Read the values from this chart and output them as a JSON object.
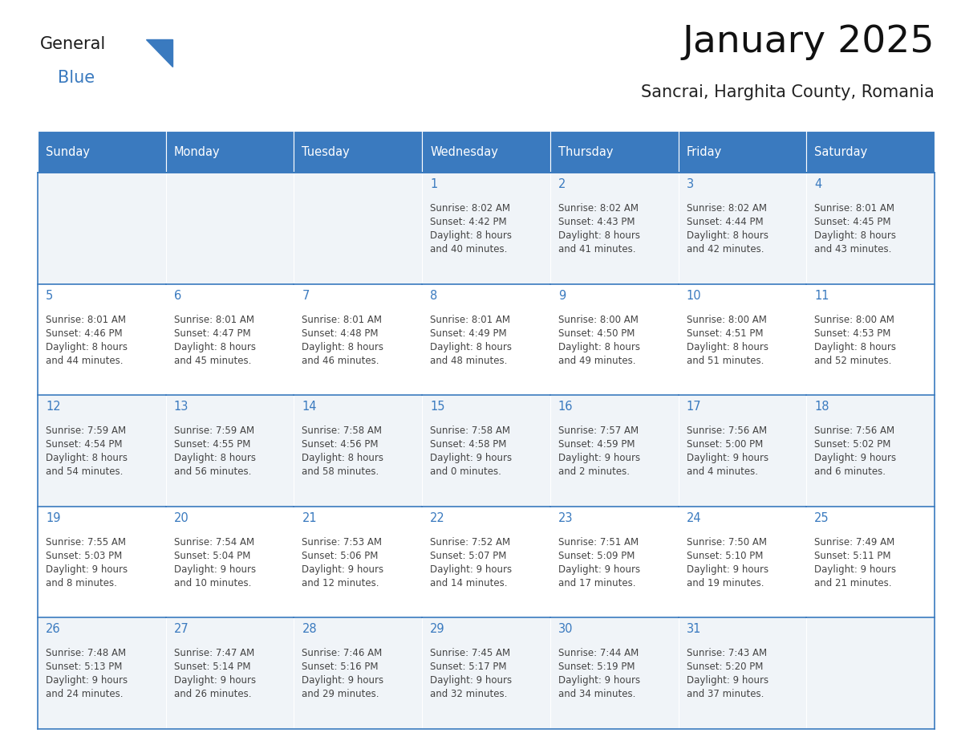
{
  "title": "January 2025",
  "subtitle": "Sancrai, Harghita County, Romania",
  "header_bg": "#3a7abf",
  "header_text_color": "#ffffff",
  "cell_bg_odd": "#f0f4f8",
  "cell_bg_even": "#ffffff",
  "day_number_color": "#3a7abf",
  "text_color": "#444444",
  "line_color": "#3a7abf",
  "days_of_week": [
    "Sunday",
    "Monday",
    "Tuesday",
    "Wednesday",
    "Thursday",
    "Friday",
    "Saturday"
  ],
  "weeks": [
    [
      {
        "day": null,
        "info": ""
      },
      {
        "day": null,
        "info": ""
      },
      {
        "day": null,
        "info": ""
      },
      {
        "day": 1,
        "info": "Sunrise: 8:02 AM\nSunset: 4:42 PM\nDaylight: 8 hours\nand 40 minutes."
      },
      {
        "day": 2,
        "info": "Sunrise: 8:02 AM\nSunset: 4:43 PM\nDaylight: 8 hours\nand 41 minutes."
      },
      {
        "day": 3,
        "info": "Sunrise: 8:02 AM\nSunset: 4:44 PM\nDaylight: 8 hours\nand 42 minutes."
      },
      {
        "day": 4,
        "info": "Sunrise: 8:01 AM\nSunset: 4:45 PM\nDaylight: 8 hours\nand 43 minutes."
      }
    ],
    [
      {
        "day": 5,
        "info": "Sunrise: 8:01 AM\nSunset: 4:46 PM\nDaylight: 8 hours\nand 44 minutes."
      },
      {
        "day": 6,
        "info": "Sunrise: 8:01 AM\nSunset: 4:47 PM\nDaylight: 8 hours\nand 45 minutes."
      },
      {
        "day": 7,
        "info": "Sunrise: 8:01 AM\nSunset: 4:48 PM\nDaylight: 8 hours\nand 46 minutes."
      },
      {
        "day": 8,
        "info": "Sunrise: 8:01 AM\nSunset: 4:49 PM\nDaylight: 8 hours\nand 48 minutes."
      },
      {
        "day": 9,
        "info": "Sunrise: 8:00 AM\nSunset: 4:50 PM\nDaylight: 8 hours\nand 49 minutes."
      },
      {
        "day": 10,
        "info": "Sunrise: 8:00 AM\nSunset: 4:51 PM\nDaylight: 8 hours\nand 51 minutes."
      },
      {
        "day": 11,
        "info": "Sunrise: 8:00 AM\nSunset: 4:53 PM\nDaylight: 8 hours\nand 52 minutes."
      }
    ],
    [
      {
        "day": 12,
        "info": "Sunrise: 7:59 AM\nSunset: 4:54 PM\nDaylight: 8 hours\nand 54 minutes."
      },
      {
        "day": 13,
        "info": "Sunrise: 7:59 AM\nSunset: 4:55 PM\nDaylight: 8 hours\nand 56 minutes."
      },
      {
        "day": 14,
        "info": "Sunrise: 7:58 AM\nSunset: 4:56 PM\nDaylight: 8 hours\nand 58 minutes."
      },
      {
        "day": 15,
        "info": "Sunrise: 7:58 AM\nSunset: 4:58 PM\nDaylight: 9 hours\nand 0 minutes."
      },
      {
        "day": 16,
        "info": "Sunrise: 7:57 AM\nSunset: 4:59 PM\nDaylight: 9 hours\nand 2 minutes."
      },
      {
        "day": 17,
        "info": "Sunrise: 7:56 AM\nSunset: 5:00 PM\nDaylight: 9 hours\nand 4 minutes."
      },
      {
        "day": 18,
        "info": "Sunrise: 7:56 AM\nSunset: 5:02 PM\nDaylight: 9 hours\nand 6 minutes."
      }
    ],
    [
      {
        "day": 19,
        "info": "Sunrise: 7:55 AM\nSunset: 5:03 PM\nDaylight: 9 hours\nand 8 minutes."
      },
      {
        "day": 20,
        "info": "Sunrise: 7:54 AM\nSunset: 5:04 PM\nDaylight: 9 hours\nand 10 minutes."
      },
      {
        "day": 21,
        "info": "Sunrise: 7:53 AM\nSunset: 5:06 PM\nDaylight: 9 hours\nand 12 minutes."
      },
      {
        "day": 22,
        "info": "Sunrise: 7:52 AM\nSunset: 5:07 PM\nDaylight: 9 hours\nand 14 minutes."
      },
      {
        "day": 23,
        "info": "Sunrise: 7:51 AM\nSunset: 5:09 PM\nDaylight: 9 hours\nand 17 minutes."
      },
      {
        "day": 24,
        "info": "Sunrise: 7:50 AM\nSunset: 5:10 PM\nDaylight: 9 hours\nand 19 minutes."
      },
      {
        "day": 25,
        "info": "Sunrise: 7:49 AM\nSunset: 5:11 PM\nDaylight: 9 hours\nand 21 minutes."
      }
    ],
    [
      {
        "day": 26,
        "info": "Sunrise: 7:48 AM\nSunset: 5:13 PM\nDaylight: 9 hours\nand 24 minutes."
      },
      {
        "day": 27,
        "info": "Sunrise: 7:47 AM\nSunset: 5:14 PM\nDaylight: 9 hours\nand 26 minutes."
      },
      {
        "day": 28,
        "info": "Sunrise: 7:46 AM\nSunset: 5:16 PM\nDaylight: 9 hours\nand 29 minutes."
      },
      {
        "day": 29,
        "info": "Sunrise: 7:45 AM\nSunset: 5:17 PM\nDaylight: 9 hours\nand 32 minutes."
      },
      {
        "day": 30,
        "info": "Sunrise: 7:44 AM\nSunset: 5:19 PM\nDaylight: 9 hours\nand 34 minutes."
      },
      {
        "day": 31,
        "info": "Sunrise: 7:43 AM\nSunset: 5:20 PM\nDaylight: 9 hours\nand 37 minutes."
      },
      {
        "day": null,
        "info": ""
      }
    ]
  ]
}
